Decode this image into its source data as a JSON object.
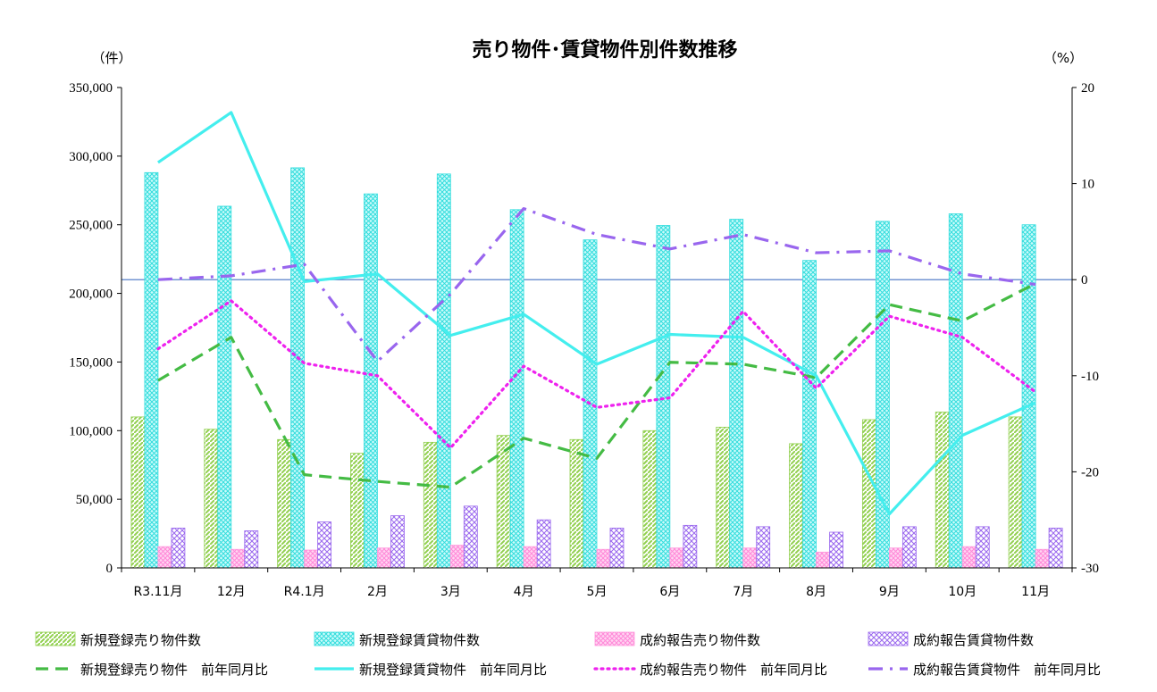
{
  "chart_data": {
    "type": "bar",
    "title": "売り物件･賃貸物件別件数推移",
    "y_left_unit": "（件）",
    "y_right_unit": "（%）",
    "categories": [
      "R3.11月",
      "12月",
      "R4.1月",
      "2月",
      "3月",
      "4月",
      "5月",
      "6月",
      "7月",
      "8月",
      "9月",
      "10月",
      "11月"
    ],
    "ylim_left": [
      0,
      350000
    ],
    "yticks_left": [
      "0",
      "50,000",
      "100,000",
      "150,000",
      "200,000",
      "250,000",
      "300,000",
      "350,000"
    ],
    "ylim_right": [
      -30,
      20
    ],
    "yticks_right": [
      "-30",
      "-20",
      "-10",
      "0",
      "10",
      "20"
    ],
    "bar_series": [
      {
        "name": "新規登録売り物件数",
        "color": "#92d050",
        "pattern": "diag",
        "values": [
          110000,
          101000,
          93500,
          83500,
          91500,
          96500,
          93500,
          100000,
          102500,
          90500,
          108000,
          113500,
          110000
        ]
      },
      {
        "name": "新規登録賃貸物件数",
        "color": "#55e8e8",
        "pattern": "cross",
        "values": [
          288000,
          263500,
          291500,
          272500,
          287000,
          261000,
          239000,
          249500,
          254000,
          224000,
          252500,
          258000,
          250000
        ]
      },
      {
        "name": "成約報告売り物件数",
        "color": "#ff99dd",
        "pattern": "cross",
        "values": [
          15500,
          13500,
          13000,
          14500,
          16500,
          15500,
          13500,
          14500,
          14500,
          11500,
          14500,
          15500,
          13500
        ]
      },
      {
        "name": "成約報告賃貸物件数",
        "color": "#9966ee",
        "pattern": "cross",
        "values": [
          29000,
          27000,
          33500,
          38000,
          45000,
          35000,
          29000,
          31000,
          30000,
          26000,
          30000,
          30000,
          29000
        ]
      }
    ],
    "line_series": [
      {
        "name": "新規登録売り物件　前年同月比",
        "color": "#44bb44",
        "dash": "dash",
        "values": [
          -10.5,
          -6.0,
          -20.3,
          -21.0,
          -21.6,
          -16.5,
          -18.6,
          -8.6,
          -8.8,
          -10.2,
          -2.6,
          -4.3,
          -0.4
        ]
      },
      {
        "name": "新規登録賃貸物件　前年同月比",
        "color": "#44eeee",
        "dash": "solid",
        "values": [
          12.2,
          17.4,
          -0.2,
          0.6,
          -5.8,
          -3.6,
          -8.8,
          -5.7,
          -6.0,
          -10.0,
          -24.4,
          -16.2,
          -12.8
        ]
      },
      {
        "name": "成約報告売り物件　前年同月比",
        "color": "#ee22ee",
        "dash": "dot",
        "values": [
          -7.2,
          -2.2,
          -8.7,
          -10.0,
          -17.5,
          -9.0,
          -13.3,
          -12.3,
          -3.3,
          -11.3,
          -3.8,
          -6.0,
          -11.7
        ]
      },
      {
        "name": "成約報告賃貸物件　前年同月比",
        "color": "#9966ee",
        "dash": "dashdot",
        "values": [
          0.0,
          0.4,
          1.6,
          -8.5,
          -1.5,
          7.4,
          4.7,
          3.2,
          4.7,
          2.8,
          3.0,
          0.6,
          -0.5
        ]
      }
    ]
  }
}
